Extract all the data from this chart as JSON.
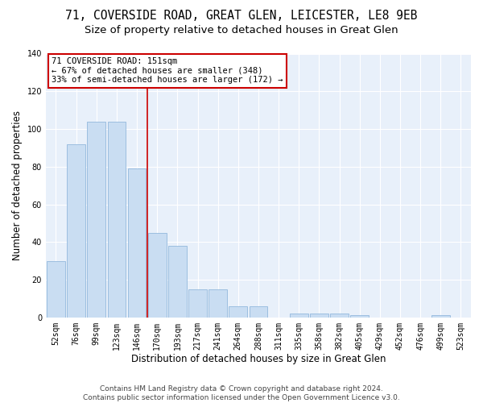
{
  "title1": "71, COVERSIDE ROAD, GREAT GLEN, LEICESTER, LE8 9EB",
  "title2": "Size of property relative to detached houses in Great Glen",
  "xlabel": "Distribution of detached houses by size in Great Glen",
  "ylabel": "Number of detached properties",
  "bar_labels": [
    "52sqm",
    "76sqm",
    "99sqm",
    "123sqm",
    "146sqm",
    "170sqm",
    "193sqm",
    "217sqm",
    "241sqm",
    "264sqm",
    "288sqm",
    "311sqm",
    "335sqm",
    "358sqm",
    "382sqm",
    "405sqm",
    "429sqm",
    "452sqm",
    "476sqm",
    "499sqm",
    "523sqm"
  ],
  "bar_values": [
    30,
    92,
    104,
    104,
    79,
    45,
    38,
    15,
    15,
    6,
    6,
    0,
    2,
    2,
    2,
    1,
    0,
    0,
    0,
    1,
    0
  ],
  "bar_color": "#c9ddf2",
  "bar_edge_color": "#92b8dd",
  "vline_color": "#cc0000",
  "annotation_text": "71 COVERSIDE ROAD: 151sqm\n← 67% of detached houses are smaller (348)\n33% of semi-detached houses are larger (172) →",
  "annotation_box_color": "white",
  "annotation_box_edge_color": "#cc0000",
  "ylim": [
    0,
    140
  ],
  "yticks": [
    0,
    20,
    40,
    60,
    80,
    100,
    120,
    140
  ],
  "bg_color": "#e8f0fa",
  "grid_color": "white",
  "footer": "Contains HM Land Registry data © Crown copyright and database right 2024.\nContains public sector information licensed under the Open Government Licence v3.0.",
  "title1_fontsize": 10.5,
  "title2_fontsize": 9.5,
  "xlabel_fontsize": 8.5,
  "ylabel_fontsize": 8.5,
  "tick_fontsize": 7,
  "annotation_fontsize": 7.5,
  "footer_fontsize": 6.5
}
